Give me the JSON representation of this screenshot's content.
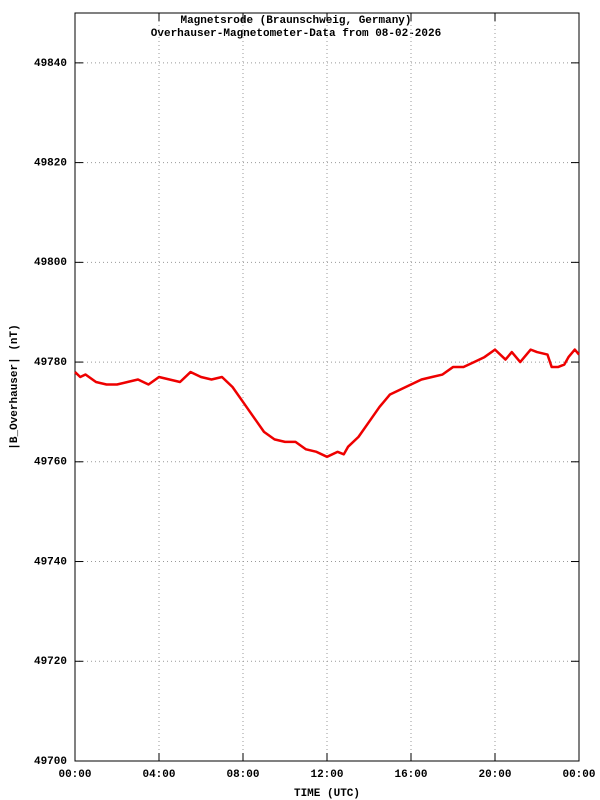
{
  "chart_data": {
    "type": "line",
    "title": "Magnetsrode (Braunschweig, Germany)",
    "subtitle": "Overhauser-Magnetometer-Data from 08-02-2026",
    "x_label": "TIME (UTC)",
    "y_label": "|B_Overhauser| (nT)",
    "xlim": [
      0,
      24
    ],
    "xticks": [
      {
        "value": 0,
        "label": "00:00"
      },
      {
        "value": 4,
        "label": "04:00"
      },
      {
        "value": 8,
        "label": "08:00"
      },
      {
        "value": 12,
        "label": "12:00"
      },
      {
        "value": 16,
        "label": "16:00"
      },
      {
        "value": 20,
        "label": "20:00"
      },
      {
        "value": 24,
        "label": "00:00"
      }
    ],
    "ylim": [
      49700,
      49850
    ],
    "yticks": [
      49700,
      49720,
      49740,
      49760,
      49780,
      49800,
      49820,
      49840
    ],
    "grid": true,
    "series": [
      {
        "color": "#ee0000",
        "x": [
          0,
          0.25,
          0.5,
          1,
          1.5,
          2,
          2.5,
          3,
          3.5,
          4,
          4.5,
          5,
          5.5,
          6,
          6.5,
          7,
          7.5,
          8,
          8.5,
          9,
          9.5,
          10,
          10.5,
          11,
          11.5,
          12,
          12.5,
          12.8,
          13,
          13.5,
          14,
          14.5,
          15,
          15.5,
          16,
          16.5,
          17,
          17.5,
          18,
          18.5,
          19,
          19.5,
          20,
          20.5,
          20.8,
          21.2,
          21.7,
          22,
          22.5,
          22.7,
          23,
          23.3,
          23.5,
          23.8,
          24
        ],
        "values": [
          49778,
          49777,
          49777.5,
          49776,
          49775.5,
          49775.5,
          49776,
          49776.5,
          49775.5,
          49777,
          49776.5,
          49776,
          49778,
          49777,
          49776.5,
          49777,
          49775,
          49772,
          49769,
          49766,
          49764.5,
          49764,
          49764,
          49762.5,
          49762,
          49761,
          49762,
          49761.5,
          49763,
          49765,
          49768,
          49771,
          49773.5,
          49774.5,
          49775.5,
          49776.5,
          49777,
          49777.5,
          49779,
          49779,
          49780,
          49781,
          49782.5,
          49780.5,
          49782,
          49780,
          49782.5,
          49782,
          49781.5,
          49779,
          49779,
          49779.5,
          49781,
          49782.5,
          49781.5
        ]
      }
    ]
  }
}
